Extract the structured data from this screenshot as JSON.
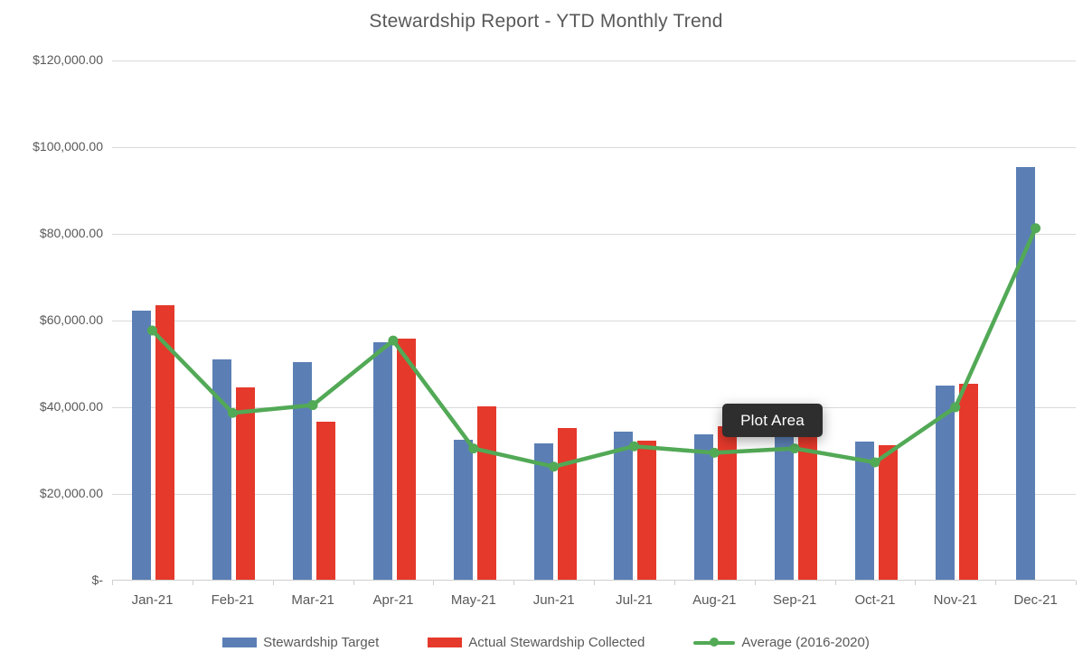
{
  "title": "Stewardship Report - YTD Monthly Trend",
  "tooltip": {
    "label": "Plot Area"
  },
  "colors": {
    "target_blue": "#5B7FB5",
    "collected_red": "#E5392B",
    "average_green": "#52A956",
    "gridline_gray": "#D9D9D9",
    "text_gray": "#595959",
    "tooltip_bg": "#2E2E2E"
  },
  "chart_data": {
    "type": "bar",
    "title": "Stewardship Report - YTD Monthly Trend",
    "categories": [
      "Jan-21",
      "Feb-21",
      "Mar-21",
      "Apr-21",
      "May-21",
      "Jun-21",
      "Jul-21",
      "Aug-21",
      "Sep-21",
      "Oct-21",
      "Nov-21",
      "Dec-21"
    ],
    "series": [
      {
        "name": "Stewardship Target",
        "type": "bar",
        "color": "#5B7FB5",
        "values": [
          62300,
          51000,
          50500,
          55000,
          32400,
          31700,
          34400,
          33800,
          34500,
          32000,
          45000,
          95400
        ]
      },
      {
        "name": "Actual Stewardship Collected",
        "type": "bar",
        "color": "#E5392B",
        "values": [
          63500,
          44500,
          36600,
          55900,
          40200,
          35300,
          32300,
          35600,
          35000,
          31200,
          45500,
          0
        ]
      },
      {
        "name": "Average (2016-2020)",
        "type": "line",
        "color": "#52A956",
        "values": [
          57700,
          38700,
          40500,
          55400,
          30500,
          26300,
          31000,
          29500,
          30500,
          27300,
          40000,
          81300
        ]
      }
    ],
    "xlabel": "",
    "ylabel": "",
    "ylim": [
      0,
      120000
    ],
    "y_tick_step": 20000,
    "y_tick_labels_top_to_bottom": [
      "$120,000.00",
      "$100,000.00",
      "$80,000.00",
      "$60,000.00",
      "$40,000.00",
      "$20,000.00",
      "$-"
    ],
    "grid": true,
    "legend_position": "bottom"
  }
}
